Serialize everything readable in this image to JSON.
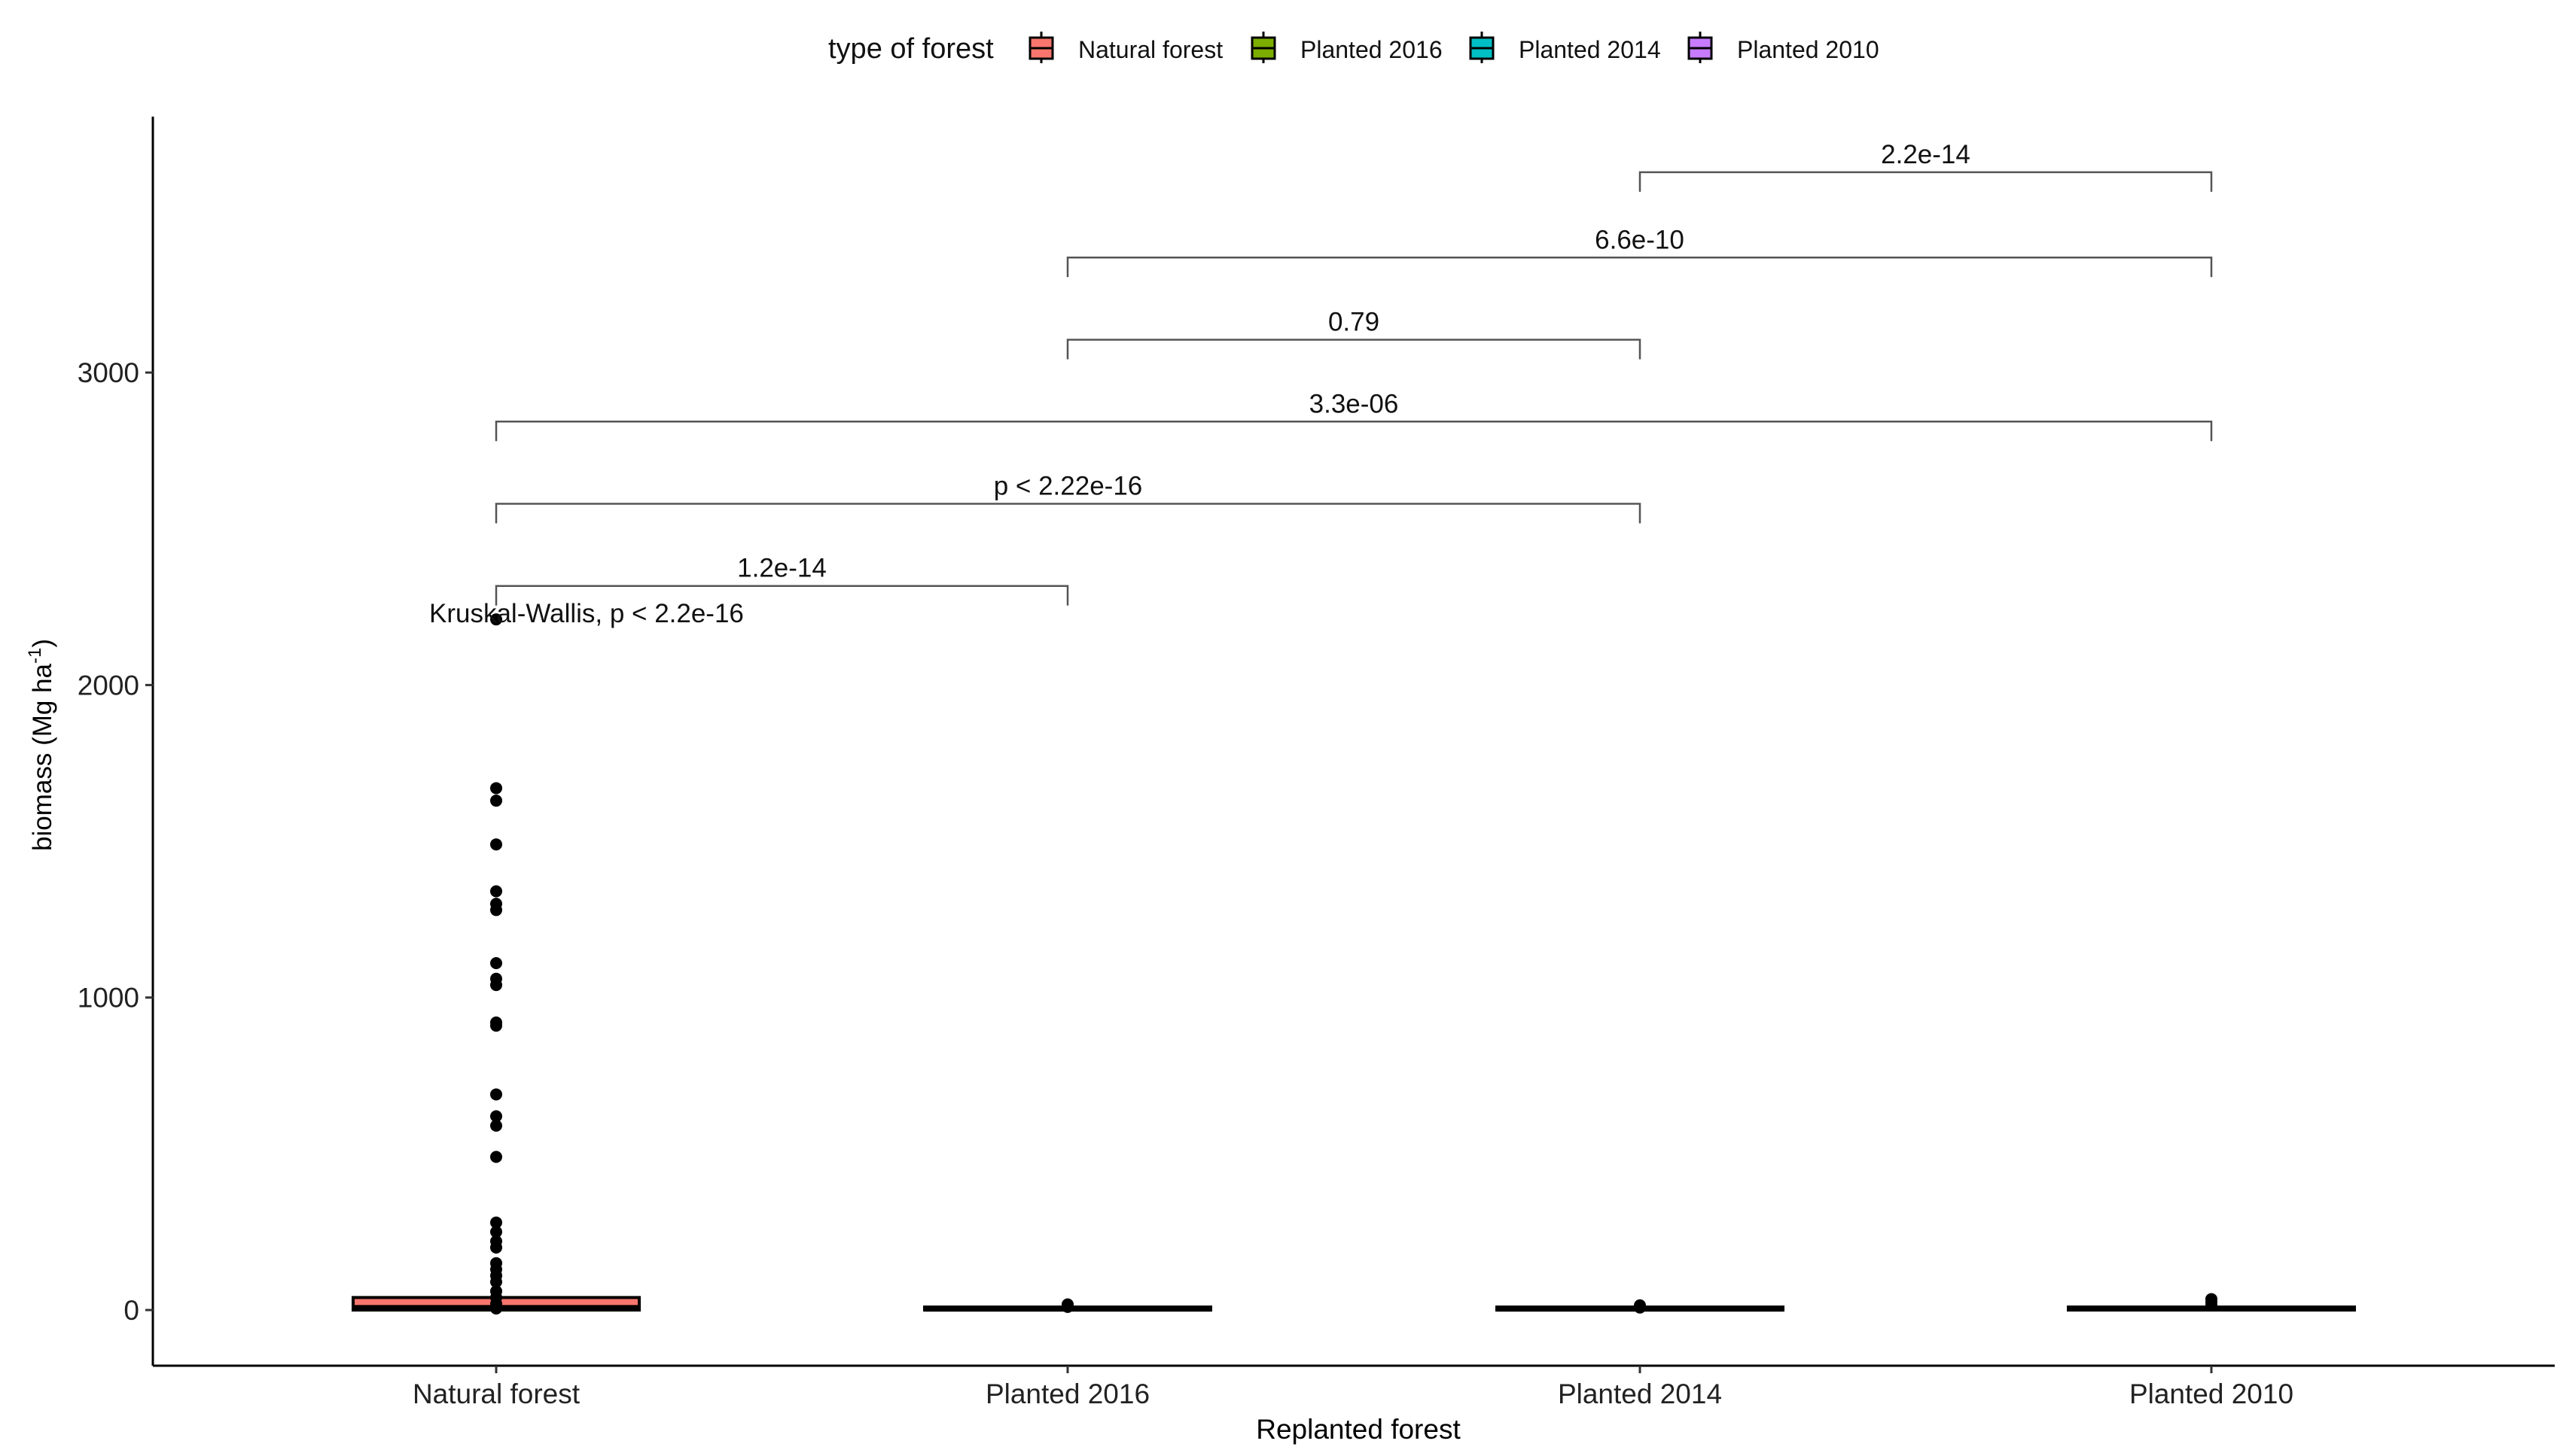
{
  "chart_data": {
    "type": "boxplot",
    "xlabel": "Replanted forest",
    "ylabel": "biomass (Mg ha",
    "ylabel_sup": "-1",
    "ylabel_close": ")",
    "ylim": [
      -180,
      3800
    ],
    "yticks": [
      0,
      1000,
      2000,
      3000
    ],
    "ytick_labels": [
      "0",
      "1000",
      "2000",
      "3000"
    ],
    "categories": [
      "Natural forest",
      "Planted 2016",
      "Planted 2014",
      "Planted 2010"
    ],
    "legend": {
      "title": "type of forest",
      "position": "top",
      "entries": [
        {
          "label": "Natural forest",
          "color": "#F8766D"
        },
        {
          "label": "Planted 2016",
          "color": "#7CAE00"
        },
        {
          "label": "Planted 2014",
          "color": "#00BFC4"
        },
        {
          "label": "Planted 2010",
          "color": "#C77CFF"
        }
      ]
    },
    "boxes": [
      {
        "q1": 0,
        "median": 10,
        "q3": 40,
        "whisker_low": 0,
        "whisker_high": 95,
        "outliers": [
          2210,
          1670,
          1630,
          1490,
          1340,
          1300,
          1280,
          1110,
          1060,
          1040,
          920,
          910,
          690,
          620,
          590,
          490,
          280,
          250,
          220,
          200,
          150,
          130,
          110,
          90,
          60,
          40,
          20,
          5
        ]
      },
      {
        "q1": 0,
        "median": 1,
        "q3": 2,
        "whisker_low": 0,
        "whisker_high": 4,
        "outliers": [
          10,
          18
        ]
      },
      {
        "q1": 0,
        "median": 1,
        "q3": 2,
        "whisker_low": 0,
        "whisker_high": 4,
        "outliers": [
          8,
          15
        ]
      },
      {
        "q1": 0,
        "median": 2,
        "q3": 4,
        "whisker_low": 0,
        "whisker_high": 8,
        "outliers": [
          15,
          25,
          35
        ]
      }
    ],
    "annotation": "Kruskal-Wallis, p < 2.2e-16",
    "comparisons": [
      {
        "from": 0,
        "to": 1,
        "label": "1.2e-14",
        "y": 2317
      },
      {
        "from": 0,
        "to": 2,
        "label": "p < 2.22e-16",
        "y": 2580
      },
      {
        "from": 0,
        "to": 3,
        "label": "3.3e-06",
        "y": 2843
      },
      {
        "from": 1,
        "to": 2,
        "label": "0.79",
        "y": 3105
      },
      {
        "from": 1,
        "to": 3,
        "label": "6.6e-10",
        "y": 3368
      },
      {
        "from": 2,
        "to": 3,
        "label": "2.2e-14",
        "y": 3641
      }
    ]
  }
}
